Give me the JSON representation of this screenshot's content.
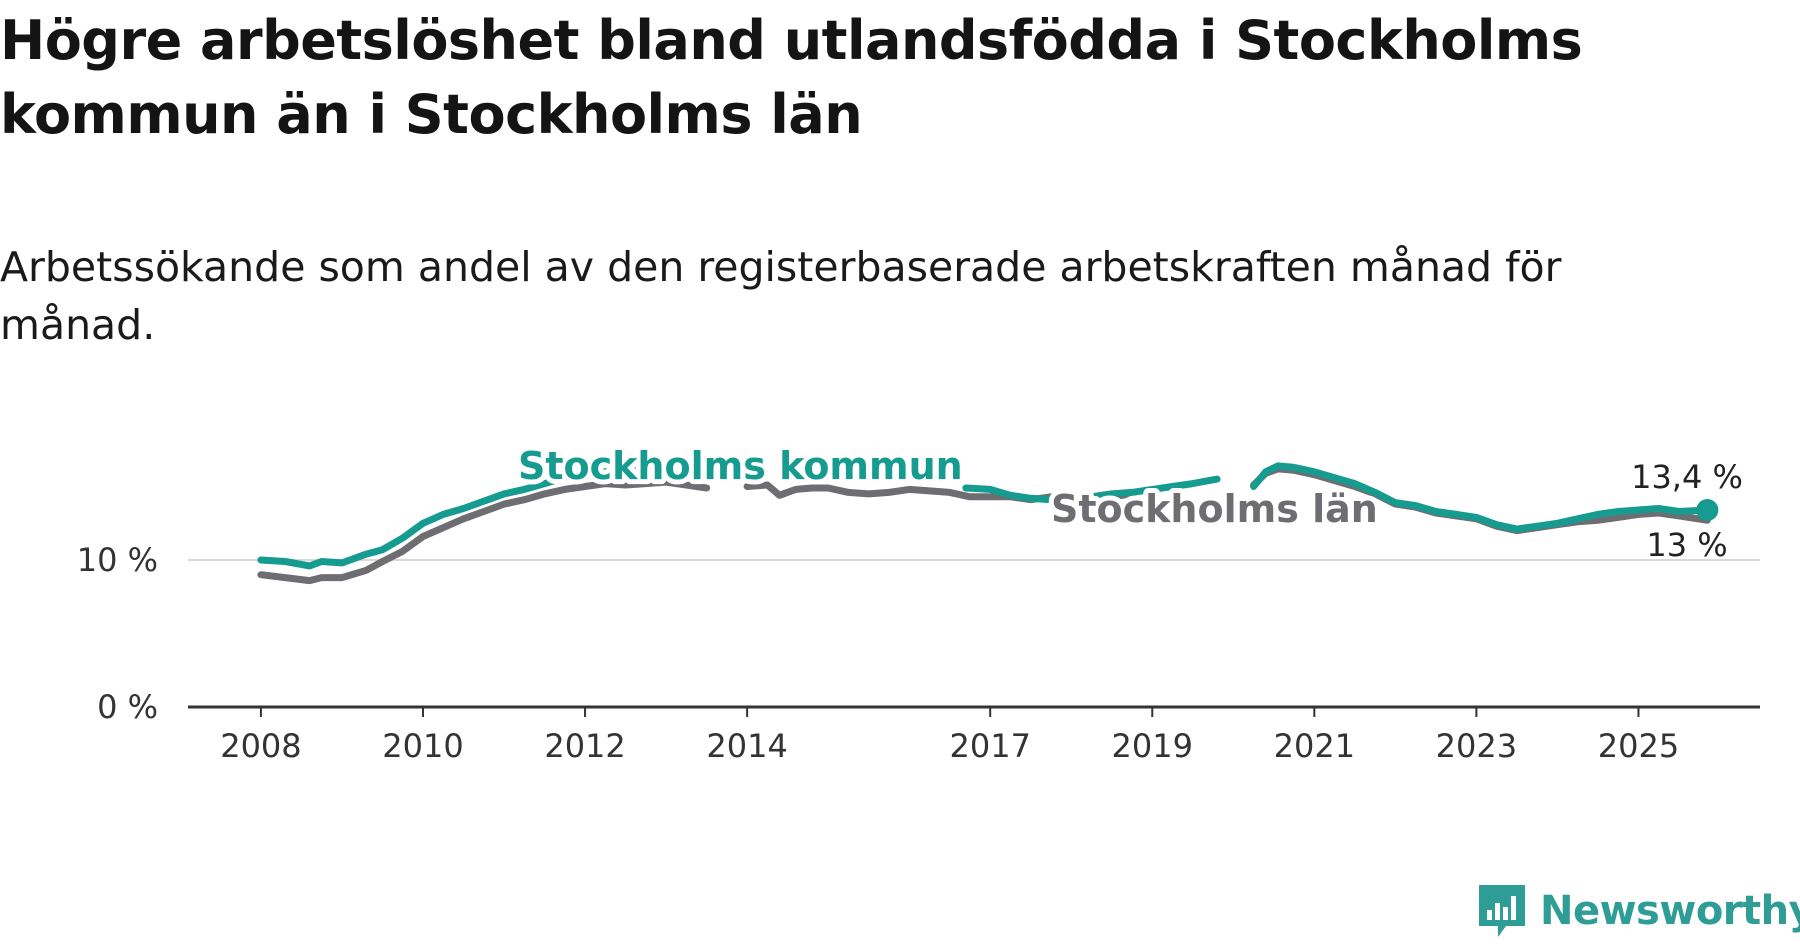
{
  "title": "Högre arbetslöshet bland utlandsfödda i Stockholms kommun än i Stockholms län",
  "subtitle": "Arbetssökande som andel av den registerbaserade arbetskraften månad för månad.",
  "brand": {
    "name": "Newsworthy",
    "icon": "newsworthy-logo-icon",
    "color": "#2e9d95"
  },
  "chart_data": {
    "type": "line",
    "x_axis": {
      "ticks": [
        "2008",
        "2010",
        "2012",
        "2014",
        "2017",
        "2019",
        "2021",
        "2023",
        "2025"
      ],
      "tick_values": [
        2008,
        2010,
        2012,
        2014,
        2017,
        2019,
        2021,
        2023,
        2025
      ],
      "range": [
        2007.1,
        2026.5
      ]
    },
    "y_axis": {
      "ticks": [
        "0 %",
        "10 %"
      ],
      "tick_values": [
        0,
        10
      ],
      "range": [
        0,
        16.5
      ],
      "gridlines": true
    },
    "series": [
      {
        "name": "Stockholms kommun",
        "color": "#159b8f",
        "end_label": "13,4 %",
        "segments": [
          [
            [
              2008.0,
              10.0
            ],
            [
              2008.3,
              9.9
            ],
            [
              2008.6,
              9.6
            ],
            [
              2008.75,
              9.9
            ],
            [
              2009.0,
              9.8
            ],
            [
              2009.3,
              10.4
            ],
            [
              2009.5,
              10.7
            ],
            [
              2009.75,
              11.5
            ],
            [
              2010.0,
              12.5
            ],
            [
              2010.25,
              13.1
            ],
            [
              2010.5,
              13.5
            ],
            [
              2010.75,
              14.0
            ],
            [
              2011.0,
              14.5
            ],
            [
              2011.25,
              14.8
            ],
            [
              2011.5,
              15.2
            ],
            [
              2011.75,
              15.6
            ],
            [
              2012.0,
              15.8
            ],
            [
              2012.25,
              16.0
            ],
            [
              2012.5,
              16.1
            ],
            [
              2012.75,
              16.2
            ],
            [
              2012.95,
              16.1
            ]
          ],
          [
            [
              2016.7,
              14.9
            ],
            [
              2017.0,
              14.8
            ],
            [
              2017.25,
              14.4
            ],
            [
              2017.5,
              14.2
            ],
            [
              2017.75,
              14.1
            ],
            [
              2018.0,
              14.2
            ],
            [
              2018.25,
              14.3
            ],
            [
              2018.5,
              14.5
            ],
            [
              2018.75,
              14.6
            ],
            [
              2019.0,
              14.8
            ],
            [
              2019.25,
              15.0
            ],
            [
              2019.5,
              15.2
            ],
            [
              2019.8,
              15.5
            ]
          ],
          [
            [
              2020.25,
              15.0
            ],
            [
              2020.4,
              16.0
            ],
            [
              2020.55,
              16.4
            ],
            [
              2020.75,
              16.3
            ],
            [
              2021.0,
              16.0
            ],
            [
              2021.25,
              15.6
            ],
            [
              2021.5,
              15.2
            ],
            [
              2021.75,
              14.6
            ],
            [
              2022.0,
              13.9
            ],
            [
              2022.25,
              13.7
            ],
            [
              2022.5,
              13.3
            ],
            [
              2022.75,
              13.1
            ],
            [
              2023.0,
              12.9
            ],
            [
              2023.25,
              12.4
            ],
            [
              2023.5,
              12.1
            ],
            [
              2023.75,
              12.3
            ],
            [
              2024.0,
              12.5
            ],
            [
              2024.25,
              12.8
            ],
            [
              2024.5,
              13.1
            ],
            [
              2024.75,
              13.3
            ],
            [
              2025.0,
              13.4
            ],
            [
              2025.25,
              13.5
            ],
            [
              2025.5,
              13.3
            ],
            [
              2025.85,
              13.4
            ]
          ]
        ]
      },
      {
        "name": "Stockholms län",
        "color": "#6e6d72",
        "end_label": "13 %",
        "segments": [
          [
            [
              2008.0,
              9.0
            ],
            [
              2008.3,
              8.8
            ],
            [
              2008.6,
              8.6
            ],
            [
              2008.75,
              8.8
            ],
            [
              2009.0,
              8.8
            ],
            [
              2009.3,
              9.3
            ],
            [
              2009.5,
              9.9
            ],
            [
              2009.75,
              10.6
            ],
            [
              2010.0,
              11.6
            ],
            [
              2010.25,
              12.2
            ],
            [
              2010.5,
              12.8
            ],
            [
              2010.75,
              13.3
            ],
            [
              2011.0,
              13.8
            ],
            [
              2011.25,
              14.1
            ],
            [
              2011.5,
              14.5
            ],
            [
              2011.75,
              14.8
            ],
            [
              2012.0,
              15.0
            ],
            [
              2012.25,
              15.2
            ],
            [
              2012.5,
              15.1
            ],
            [
              2012.75,
              15.2
            ],
            [
              2013.0,
              15.3
            ],
            [
              2013.25,
              15.1
            ],
            [
              2013.5,
              14.9
            ]
          ],
          [
            [
              2014.0,
              15.0
            ],
            [
              2014.25,
              15.1
            ],
            [
              2014.4,
              14.4
            ],
            [
              2014.6,
              14.8
            ],
            [
              2014.8,
              14.9
            ],
            [
              2015.0,
              14.9
            ],
            [
              2015.25,
              14.6
            ],
            [
              2015.5,
              14.5
            ],
            [
              2015.75,
              14.6
            ],
            [
              2016.0,
              14.8
            ],
            [
              2016.25,
              14.7
            ],
            [
              2016.5,
              14.6
            ],
            [
              2016.75,
              14.3
            ],
            [
              2017.0,
              14.3
            ],
            [
              2017.25,
              14.3
            ],
            [
              2017.5,
              14.1
            ],
            [
              2017.75,
              14.3
            ],
            [
              2018.0,
              14.3
            ],
            [
              2018.25,
              14.2
            ],
            [
              2018.5,
              14.3
            ],
            [
              2018.75,
              14.5
            ]
          ],
          [
            [
              2020.25,
              15.1
            ],
            [
              2020.4,
              15.9
            ],
            [
              2020.55,
              16.2
            ],
            [
              2020.75,
              16.1
            ],
            [
              2021.0,
              15.8
            ],
            [
              2021.25,
              15.4
            ],
            [
              2021.5,
              15.0
            ],
            [
              2021.75,
              14.5
            ],
            [
              2022.0,
              13.8
            ],
            [
              2022.25,
              13.6
            ],
            [
              2022.5,
              13.2
            ],
            [
              2022.75,
              13.0
            ],
            [
              2023.0,
              12.8
            ],
            [
              2023.25,
              12.3
            ],
            [
              2023.5,
              12.0
            ],
            [
              2023.75,
              12.2
            ],
            [
              2024.0,
              12.4
            ],
            [
              2024.25,
              12.6
            ],
            [
              2024.5,
              12.7
            ],
            [
              2024.75,
              12.9
            ],
            [
              2025.0,
              13.1
            ],
            [
              2025.25,
              13.2
            ],
            [
              2025.5,
              13.0
            ],
            [
              2025.85,
              12.7
            ]
          ]
        ]
      }
    ]
  }
}
